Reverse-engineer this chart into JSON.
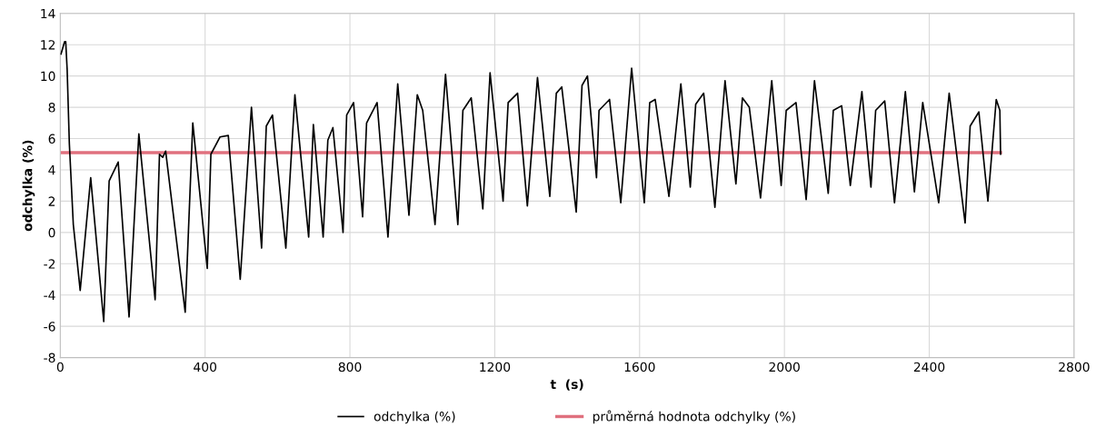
{
  "chart_data": {
    "type": "line",
    "xlabel": "t  (s)",
    "ylabel": "odchylka (%)",
    "xlim": [
      0,
      2800
    ],
    "xticks": [
      0,
      400,
      800,
      1200,
      1600,
      2000,
      2400,
      2800
    ],
    "ylim": [
      -8,
      14
    ],
    "yticks": [
      -8,
      -6,
      -4,
      -2,
      0,
      2,
      4,
      6,
      8,
      10,
      12,
      14
    ],
    "grid": true,
    "legend": "bottom",
    "series": [
      {
        "name": "odchylka (%)",
        "color": "#000000",
        "x": [
          2,
          12,
          15,
          19,
          25,
          36,
          55,
          84,
          120,
          135,
          160,
          190,
          217,
          262,
          274,
          283,
          291,
          345,
          366,
          406,
          416,
          441,
          464,
          497,
          528,
          556,
          569,
          586,
          623,
          648,
          686,
          699,
          726,
          739,
          753,
          781,
          791,
          810,
          835,
          846,
          875,
          905,
          932,
          963,
          986,
          1001,
          1035,
          1064,
          1098,
          1112,
          1135,
          1167,
          1187,
          1223,
          1237,
          1263,
          1290,
          1318,
          1352,
          1370,
          1385,
          1425,
          1441,
          1456,
          1481,
          1488,
          1517,
          1548,
          1578,
          1613,
          1628,
          1643,
          1681,
          1714,
          1740,
          1755,
          1777,
          1808,
          1836,
          1866,
          1884,
          1903,
          1934,
          1965,
          1991,
          2005,
          2032,
          2060,
          2083,
          2121,
          2135,
          2158,
          2182,
          2214,
          2239,
          2252,
          2277,
          2304,
          2334,
          2359,
          2382,
          2426,
          2455,
          2499,
          2513,
          2537,
          2562,
          2585,
          2595,
          2597
        ],
        "values": [
          11.4,
          12.2,
          12.2,
          10.4,
          5.7,
          0.5,
          -3.7,
          3.5,
          -5.7,
          3.3,
          4.5,
          -5.4,
          6.3,
          -4.3,
          5.0,
          4.8,
          5.2,
          -5.1,
          7.0,
          -2.3,
          5.0,
          6.1,
          6.2,
          -3.0,
          8.0,
          -1.0,
          6.8,
          7.5,
          -1.0,
          8.8,
          -0.3,
          6.9,
          -0.3,
          5.9,
          6.7,
          0.0,
          7.5,
          8.3,
          1.0,
          7.0,
          8.3,
          -0.3,
          9.5,
          1.1,
          8.8,
          7.8,
          0.5,
          10.1,
          0.5,
          7.8,
          8.6,
          1.5,
          10.2,
          2.0,
          8.3,
          8.9,
          1.7,
          9.9,
          2.3,
          8.9,
          9.3,
          1.3,
          9.4,
          10.0,
          3.5,
          7.8,
          8.5,
          1.9,
          10.5,
          1.9,
          8.3,
          8.5,
          2.3,
          9.5,
          2.9,
          8.2,
          8.9,
          1.6,
          9.7,
          3.1,
          8.6,
          8.0,
          2.2,
          9.7,
          3.0,
          7.8,
          8.3,
          2.1,
          9.7,
          2.5,
          7.8,
          8.1,
          3.0,
          9.0,
          2.9,
          7.8,
          8.4,
          1.9,
          9.0,
          2.6,
          8.3,
          1.9,
          8.9,
          0.6,
          6.8,
          7.7,
          2.0,
          8.5,
          7.8,
          5.0
        ]
      },
      {
        "name": "průměrná hodnota odchylky (%)",
        "color": "#e0707e",
        "x": [
          0,
          2597
        ],
        "values": [
          5.1,
          5.1
        ]
      }
    ]
  }
}
